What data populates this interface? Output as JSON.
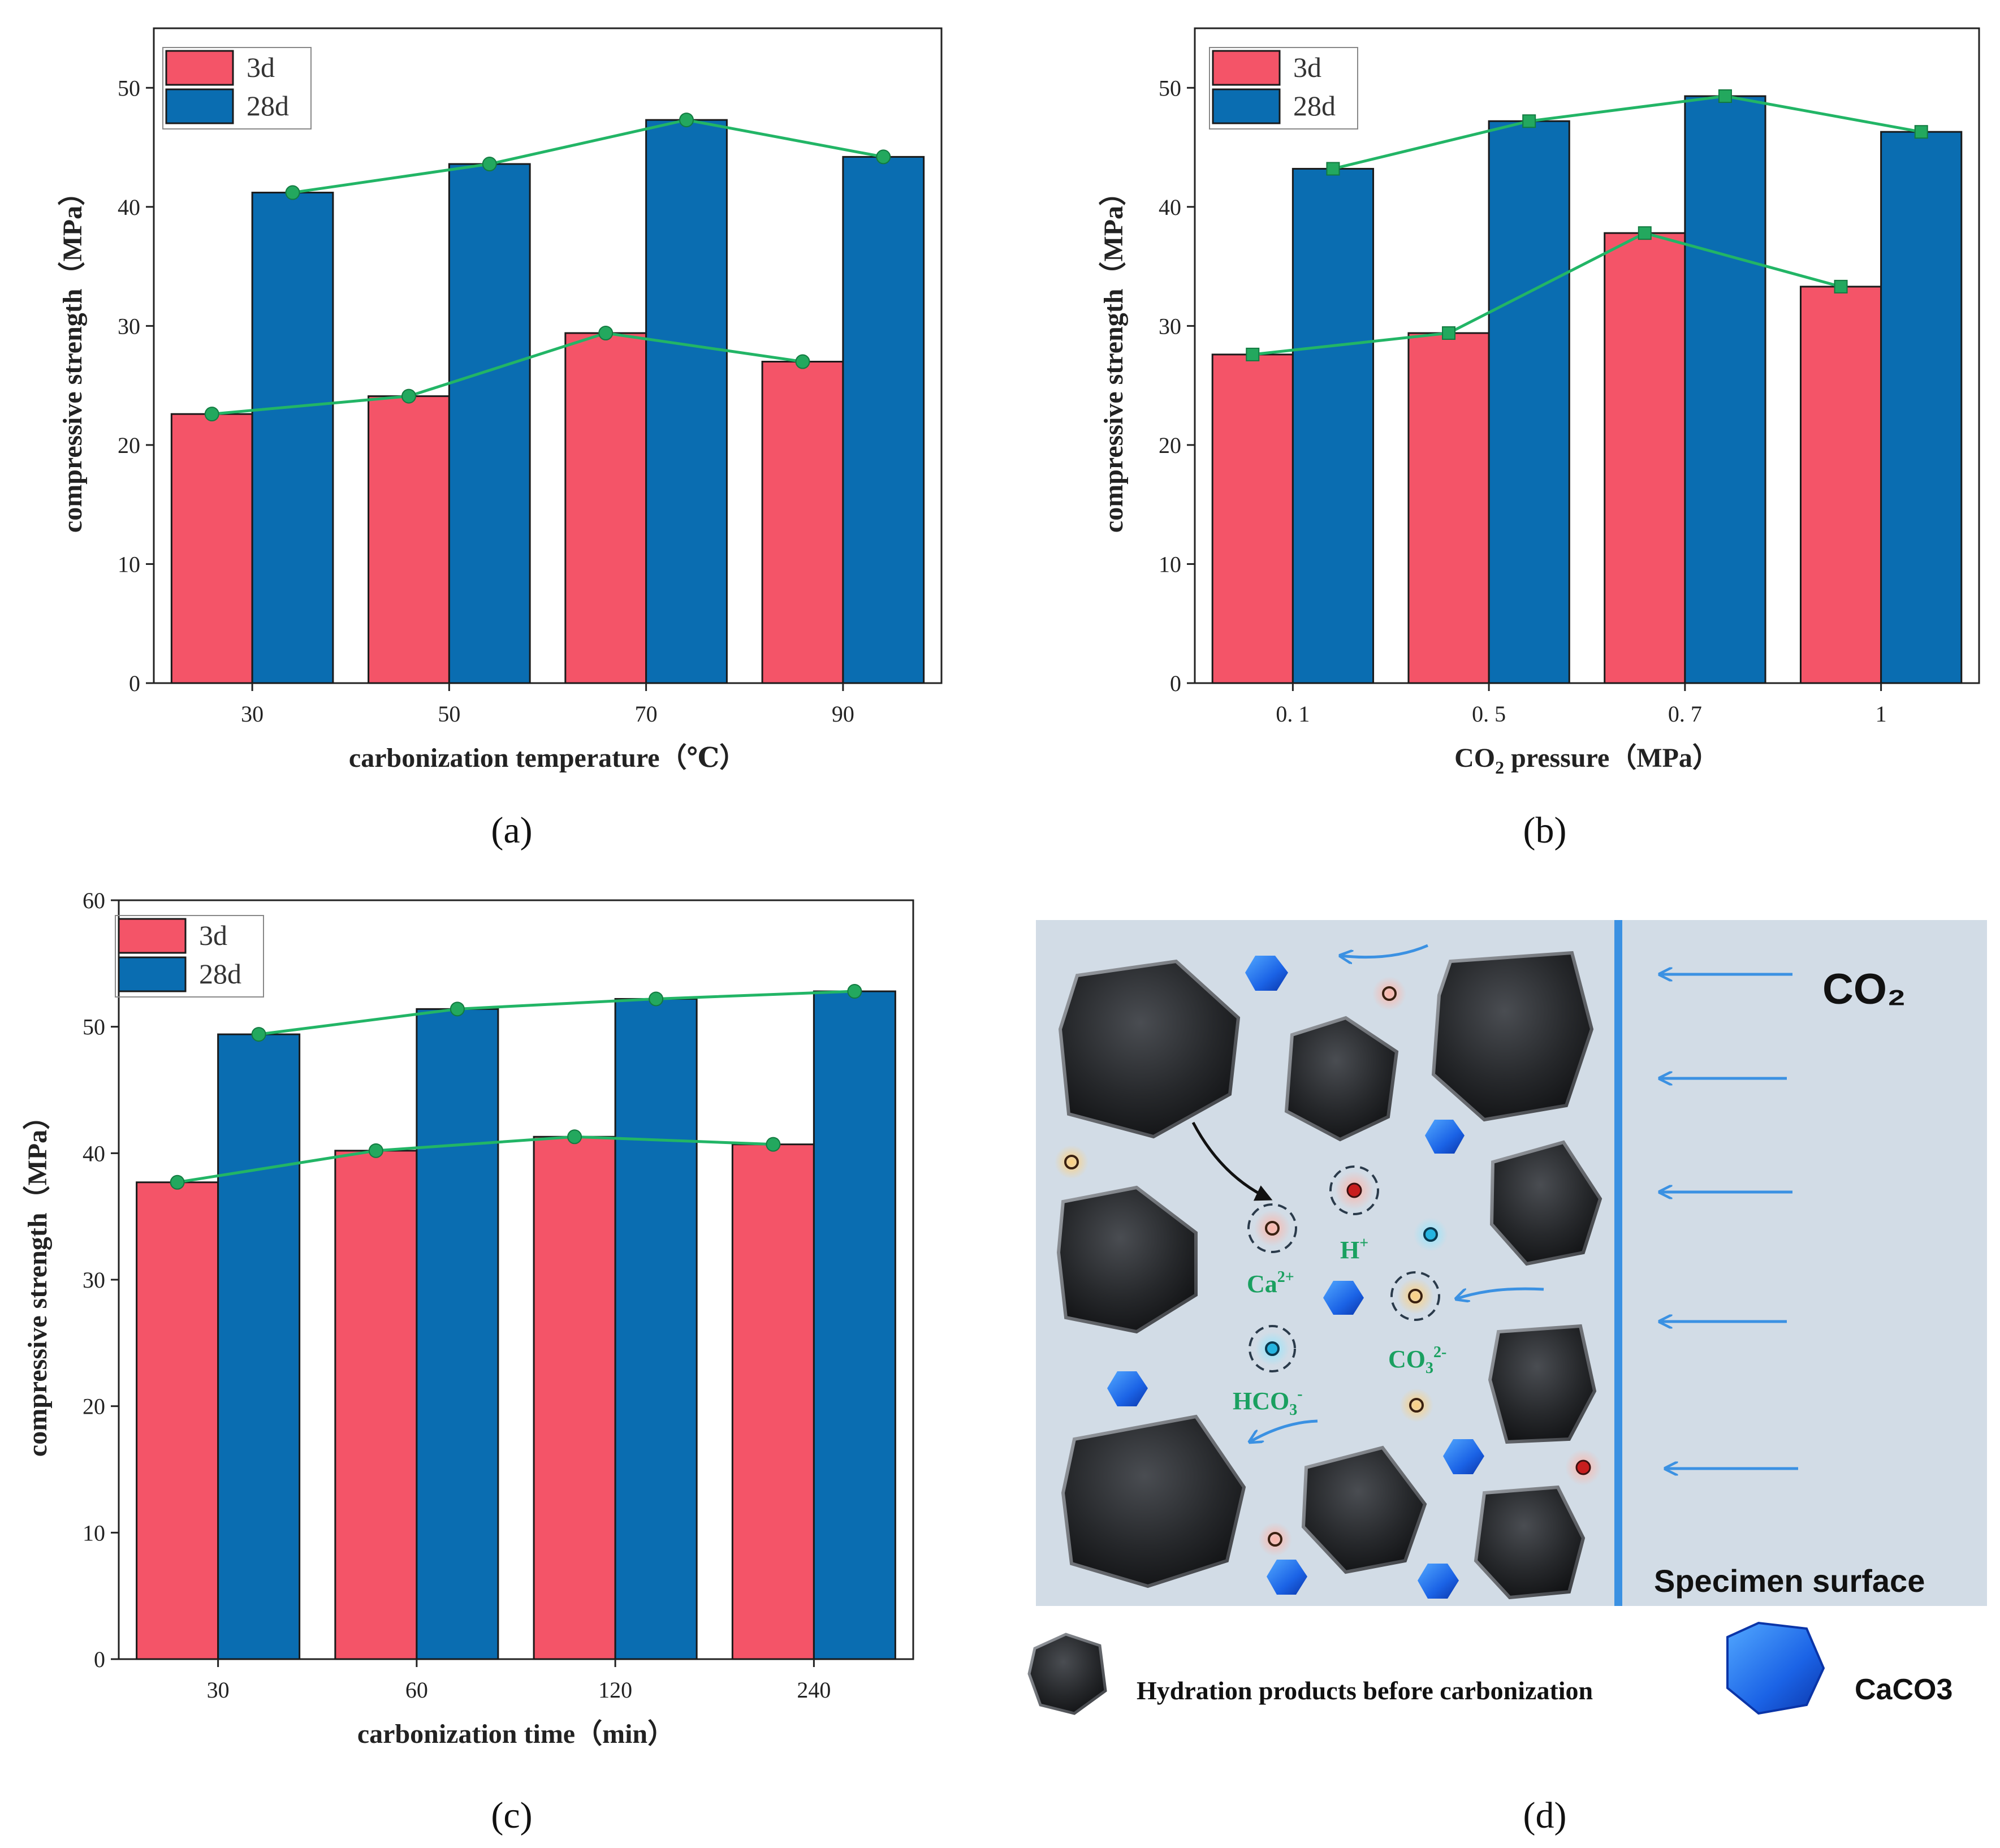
{
  "colors": {
    "bar3d": "#f45468",
    "bar28d": "#0a6db1",
    "trend": "#22b566",
    "marker": "#23a85e",
    "panel_bg": "#d2dce6",
    "arrow": "#3b91e2"
  },
  "chart_data": [
    {
      "id": "a",
      "type": "bar",
      "panel_label": "(a)",
      "xlabel": "carbonization temperature（℃）",
      "ylabel": "compressive strength（MPa）",
      "categories": [
        "30",
        "50",
        "70",
        "90"
      ],
      "ylim": [
        0,
        55
      ],
      "yticks": [
        0,
        10,
        20,
        30,
        40,
        50
      ],
      "legend": [
        "3d",
        "28d"
      ],
      "series": [
        {
          "name": "3d",
          "values": [
            22.6,
            24.1,
            29.4,
            27.0
          ]
        },
        {
          "name": "28d",
          "values": [
            41.2,
            43.6,
            47.3,
            44.2
          ]
        }
      ]
    },
    {
      "id": "b",
      "type": "bar",
      "panel_label": "(b)",
      "xlabel_pre": "CO",
      "xlabel_sub": "2",
      "xlabel_post": " pressure（MPa）",
      "ylabel": "compressive strength（MPa）",
      "categories": [
        "0. 1",
        "0. 5",
        "0. 7",
        "1"
      ],
      "ylim": [
        0,
        55
      ],
      "yticks": [
        0,
        10,
        20,
        30,
        40,
        50
      ],
      "legend": [
        "3d",
        "28d"
      ],
      "series": [
        {
          "name": "3d",
          "values": [
            27.6,
            29.4,
            37.8,
            33.3
          ]
        },
        {
          "name": "28d",
          "values": [
            43.2,
            47.2,
            49.3,
            46.3
          ]
        }
      ]
    },
    {
      "id": "c",
      "type": "bar",
      "panel_label": "(c)",
      "xlabel": "carbonization time（min）",
      "ylabel": "compressive strength（MPa）",
      "categories": [
        "30",
        "60",
        "120",
        "240"
      ],
      "ylim": [
        0,
        60
      ],
      "yticks": [
        0,
        10,
        20,
        30,
        40,
        50,
        60
      ],
      "legend": [
        "3d",
        "28d"
      ],
      "series": [
        {
          "name": "3d",
          "values": [
            37.7,
            40.2,
            41.3,
            40.7
          ]
        },
        {
          "name": "28d",
          "values": [
            49.4,
            51.4,
            52.2,
            52.8
          ]
        }
      ]
    }
  ],
  "diagram": {
    "panel_label": "(d)",
    "co2_label": "CO₂",
    "surface_label": "Specimen surface",
    "ions": {
      "h": "H",
      "ca": "Ca",
      "co3": "CO",
      "hco3": "HCO"
    },
    "legend_hydration": "Hydration products before carbonization",
    "legend_caco3": "CaCO3"
  }
}
